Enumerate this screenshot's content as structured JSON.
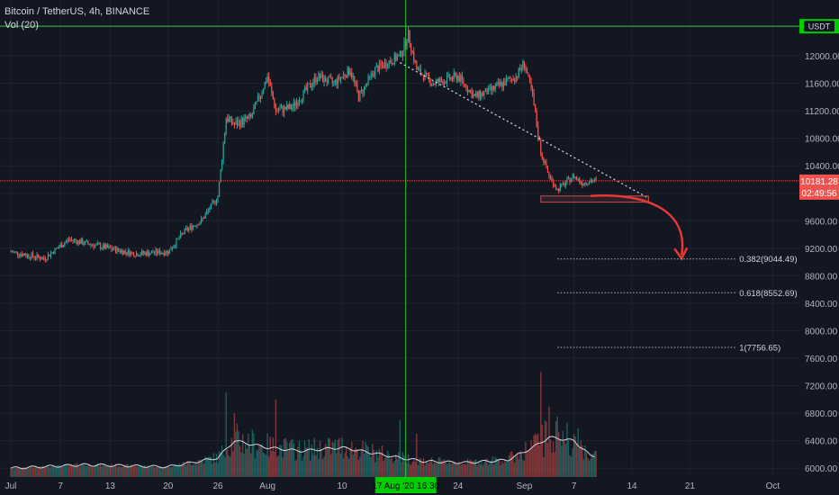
{
  "header": {
    "symbol": "Bitcoin / TetherUS, 4h, BINANCE",
    "indicator": "Vol (20)"
  },
  "currency_badge": "USDT",
  "price_label": {
    "price": "10181.28",
    "countdown": "02:49:56"
  },
  "crosshair_time_label": "17 Aug '20  16:30",
  "colors": {
    "background": "#131722",
    "up": "#26a69a",
    "down": "#ef5350",
    "crosshair": "#33cc33",
    "price_line": "#ef5350",
    "arrow": "#e53935",
    "vol_ma": "#d1d4dc"
  },
  "chart_data": {
    "type": "candlestick",
    "title": "Bitcoin / TetherUS, 4h, BINANCE",
    "y_axis": {
      "ticks": [
        "6000.00",
        "6400.00",
        "6800.00",
        "7200.00",
        "7600.00",
        "8000.00",
        "8400.00",
        "8800.00",
        "9200.00",
        "9600.00",
        "10000.00",
        "10400.00",
        "10800.00",
        "11200.00",
        "11600.00",
        "12000.00"
      ],
      "range": [
        5870,
        12720
      ]
    },
    "x_axis": {
      "ticks": [
        "Jul",
        "7",
        "13",
        "20",
        "26",
        "Aug",
        "10",
        "17 Aug '20",
        "24",
        "Sep",
        "7",
        "14",
        "21",
        "Oct"
      ],
      "range": [
        "2020-07-01",
        "2020-10-01"
      ]
    },
    "price_waypoints": [
      [
        "2020-07-01",
        9150
      ],
      [
        "2020-07-05",
        9050
      ],
      [
        "2020-07-08",
        9330
      ],
      [
        "2020-07-12",
        9220
      ],
      [
        "2020-07-16",
        9120
      ],
      [
        "2020-07-20",
        9150
      ],
      [
        "2020-07-22",
        9450
      ],
      [
        "2020-07-24",
        9600
      ],
      [
        "2020-07-26",
        9950
      ],
      [
        "2020-07-27",
        11100
      ],
      [
        "2020-07-28",
        11000
      ],
      [
        "2020-07-30",
        11100
      ],
      [
        "2020-08-01",
        11700
      ],
      [
        "2020-08-02",
        11200
      ],
      [
        "2020-08-04",
        11250
      ],
      [
        "2020-08-07",
        11700
      ],
      [
        "2020-08-09",
        11600
      ],
      [
        "2020-08-11",
        11800
      ],
      [
        "2020-08-12",
        11400
      ],
      [
        "2020-08-14",
        11800
      ],
      [
        "2020-08-17",
        12000
      ],
      [
        "2020-08-18",
        12300
      ],
      [
        "2020-08-19",
        11800
      ],
      [
        "2020-08-21",
        11600
      ],
      [
        "2020-08-24",
        11700
      ],
      [
        "2020-08-26",
        11400
      ],
      [
        "2020-08-28",
        11500
      ],
      [
        "2020-08-31",
        11700
      ],
      [
        "2020-09-01",
        11900
      ],
      [
        "2020-09-02",
        11400
      ],
      [
        "2020-09-03",
        10600
      ],
      [
        "2020-09-04",
        10250
      ],
      [
        "2020-09-05",
        10050
      ],
      [
        "2020-09-07",
        10250
      ],
      [
        "2020-09-08",
        10150
      ],
      [
        "2020-09-09",
        10180
      ]
    ],
    "volume_ma_waypoints": [
      [
        "2020-07-01",
        6000
      ],
      [
        "2020-07-10",
        6050
      ],
      [
        "2020-07-20",
        6020
      ],
      [
        "2020-07-26",
        6150
      ],
      [
        "2020-07-28",
        6400
      ],
      [
        "2020-08-01",
        6300
      ],
      [
        "2020-08-05",
        6250
      ],
      [
        "2020-08-10",
        6300
      ],
      [
        "2020-08-17",
        6150
      ],
      [
        "2020-08-20",
        6100
      ],
      [
        "2020-08-25",
        6080
      ],
      [
        "2020-08-30",
        6120
      ],
      [
        "2020-09-02",
        6300
      ],
      [
        "2020-09-04",
        6450
      ],
      [
        "2020-09-07",
        6400
      ],
      [
        "2020-09-09",
        6180
      ]
    ],
    "volume_spikes": [
      [
        "2020-07-27",
        7100
      ],
      [
        "2020-07-28",
        6800
      ],
      [
        "2020-08-02",
        7000
      ],
      [
        "2020-08-17",
        6700
      ],
      [
        "2020-08-19",
        6500
      ],
      [
        "2020-09-03",
        7400
      ],
      [
        "2020-09-04",
        6900
      ],
      [
        "2020-09-05",
        6750
      ],
      [
        "2020-09-07",
        6500
      ]
    ],
    "crosshair": {
      "time": "2020-08-17 16:30",
      "price": 12430
    },
    "current_price": 10181.28,
    "trendline": {
      "from": [
        "2020-08-17",
        11900
      ],
      "to": [
        "2020-09-16",
        9930
      ]
    },
    "support_box": {
      "from": "2020-09-03",
      "to": "2020-09-16",
      "top": 9960,
      "bottom": 9870
    },
    "projection_arrow": {
      "from": [
        "2020-09-09",
        9960
      ],
      "to": [
        "2020-09-20",
        9050
      ]
    },
    "fib_levels": [
      {
        "label": "0.382(9044.49)",
        "price": 9044.49,
        "from": "2020-09-05",
        "to": "2020-09-30"
      },
      {
        "label": "0.618(8552.69)",
        "price": 8552.69,
        "from": "2020-09-05",
        "to": "2020-09-30"
      },
      {
        "label": "1(7756.65)",
        "price": 7756.65,
        "from": "2020-09-05",
        "to": "2020-09-30"
      }
    ]
  }
}
